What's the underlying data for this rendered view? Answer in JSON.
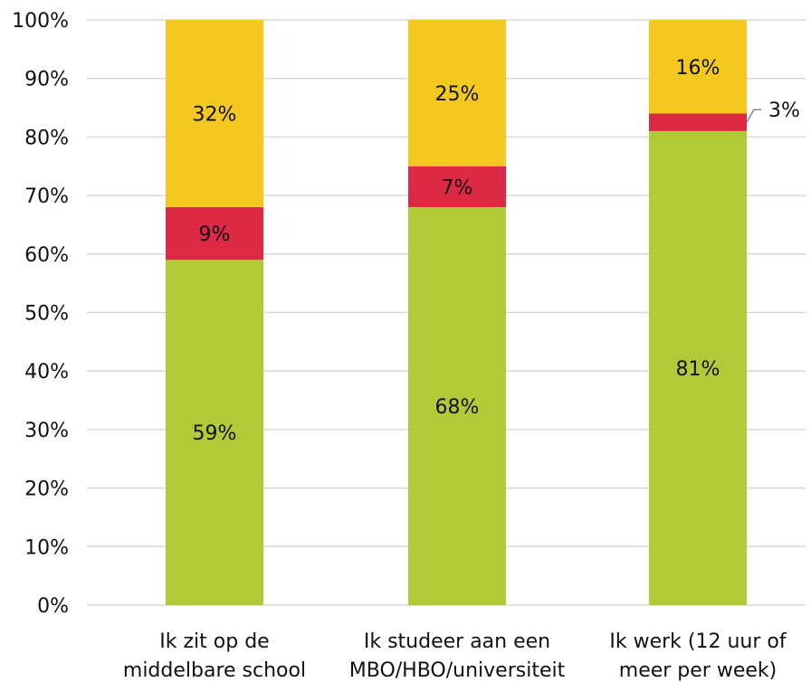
{
  "chart_data": {
    "type": "bar",
    "stacked": true,
    "categories": [
      [
        "Ik zit op de",
        "middelbare school"
      ],
      [
        "Ik studeer aan een",
        "MBO/HBO/universiteit"
      ],
      [
        "Ik werk (12 uur of",
        "meer per week)"
      ]
    ],
    "series": [
      {
        "color": "#b1cb38",
        "values": [
          59,
          68,
          81
        ],
        "labels": [
          "59%",
          "68%",
          "81%"
        ]
      },
      {
        "color": "#dc2a45",
        "values": [
          9,
          7,
          3
        ],
        "labels": [
          "9%",
          "7%",
          "3%"
        ]
      },
      {
        "color": "#f3c81f",
        "values": [
          32,
          25,
          16
        ],
        "labels": [
          "32%",
          "25%",
          "16%"
        ]
      }
    ],
    "ylim": [
      0,
      100
    ],
    "yticks": [
      "0%",
      "10%",
      "20%",
      "30%",
      "40%",
      "50%",
      "60%",
      "70%",
      "80%",
      "90%",
      "100%"
    ],
    "grid": true,
    "legend": "none"
  }
}
